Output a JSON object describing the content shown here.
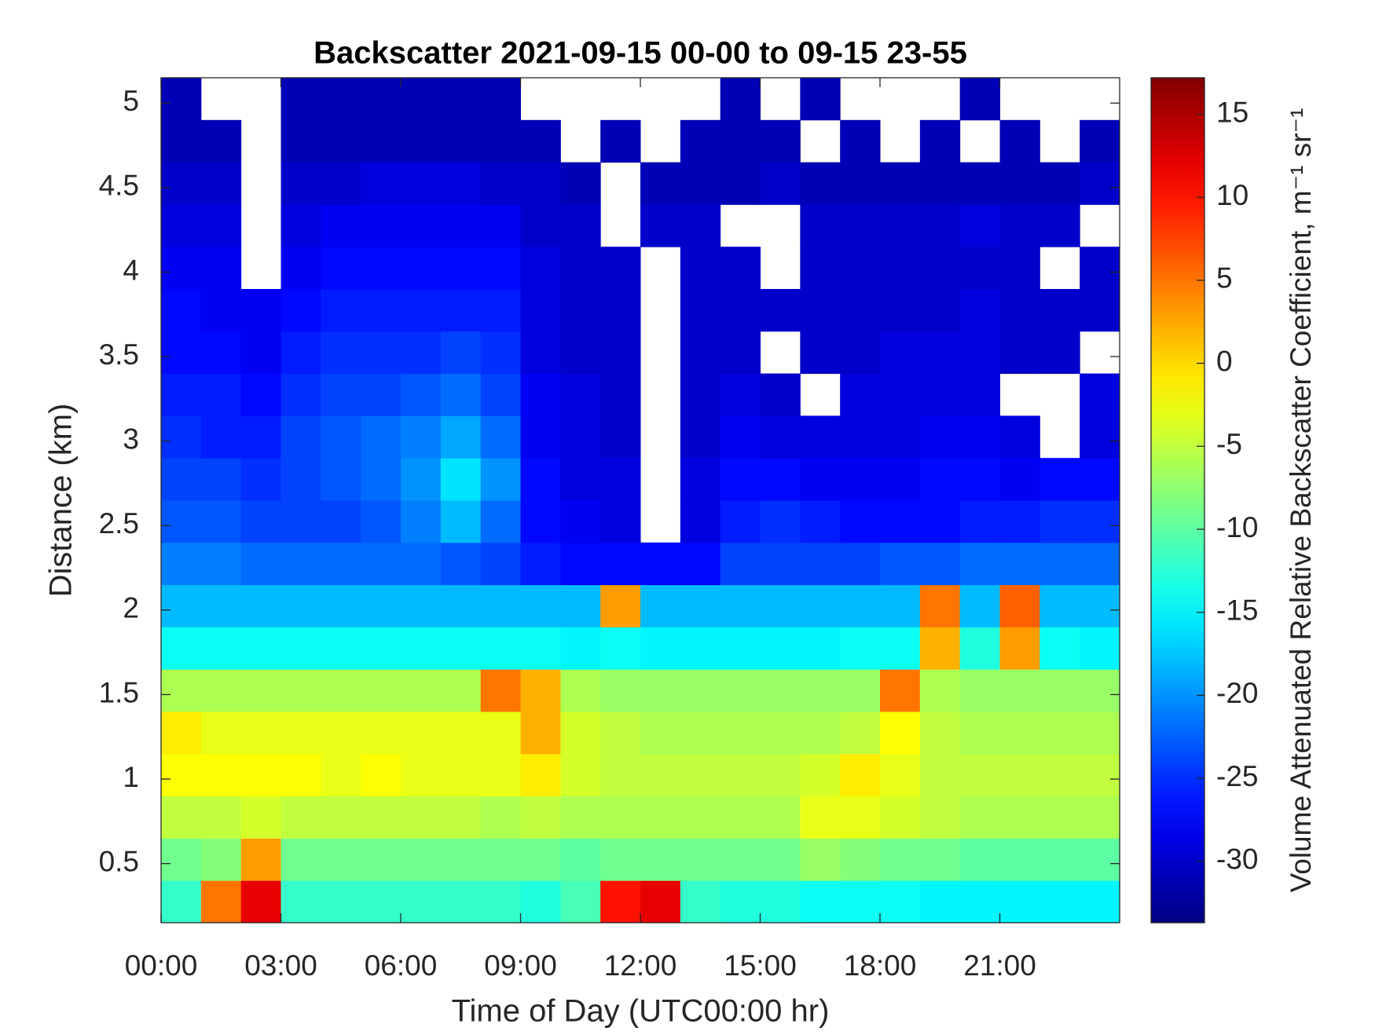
{
  "chart_data": {
    "type": "heatmap",
    "title": "Backscatter 2021-09-15 00-00 to 09-15 23-55",
    "x_label": "Time of Day (UTC00:00 hr)",
    "y_label": "Distance (km)",
    "colorbar_label": "Volume Attenuated Relative Backscatter Coefficient, m⁻¹ sr⁻¹",
    "colormap": "jet",
    "x": [
      0,
      1,
      2,
      3,
      4,
      5,
      6,
      7,
      8,
      9,
      10,
      11,
      12,
      13,
      14,
      15,
      16,
      17,
      18,
      19,
      20,
      21,
      22,
      23,
      24
    ],
    "y": [
      0.15,
      0.4,
      0.65,
      0.9,
      1.15,
      1.4,
      1.65,
      1.9,
      2.15,
      2.4,
      2.65,
      2.9,
      3.15,
      3.4,
      3.65,
      3.9,
      4.15,
      4.4,
      4.65,
      4.9,
      5.15
    ],
    "z": [
      [
        -12,
        5,
        12,
        -12,
        -12,
        -12,
        -12,
        -12,
        -12,
        -13,
        -11,
        10,
        12,
        -12,
        -13,
        -13,
        -14,
        -14,
        -14,
        -15,
        -15,
        -15,
        -15,
        -15
      ],
      [
        -9,
        -8,
        3,
        -9,
        -9,
        -9,
        -9,
        -9,
        -9,
        -9,
        -10,
        -9,
        -9,
        -9,
        -9,
        -9,
        -7,
        -8,
        -9,
        -9,
        -10,
        -10,
        -10,
        -10
      ],
      [
        -5,
        -5,
        -4,
        -5,
        -5,
        -5,
        -5,
        -5,
        -6,
        -5,
        -6,
        -6,
        -6,
        -6,
        -6,
        -6,
        -3,
        -3,
        -4,
        -5,
        -6,
        -6,
        -6,
        -6
      ],
      [
        -2,
        -2,
        -2,
        -2,
        -3,
        -2,
        -3,
        -3,
        -3,
        -1,
        -4,
        -5,
        -5,
        -5,
        -5,
        -5,
        -4,
        -1,
        -3,
        -5,
        -5,
        -5,
        -5,
        -5
      ],
      [
        -1,
        -3,
        -3,
        -3,
        -3,
        -3,
        -3,
        -3,
        -3,
        2,
        -4,
        -5,
        -6,
        -6,
        -6,
        -6,
        -6,
        -5,
        -2,
        -5,
        -6,
        -6,
        -6,
        -6
      ],
      [
        -6,
        -6,
        -6,
        -6,
        -6,
        -6,
        -6,
        -6,
        5,
        2,
        -6,
        -7,
        -7,
        -7,
        -7,
        -7,
        -7,
        -7,
        5,
        -6,
        -7,
        -7,
        -7,
        -7
      ],
      [
        -14,
        -14,
        -14,
        -14,
        -14,
        -14,
        -14,
        -14,
        -14,
        -14,
        -15,
        -14,
        -15,
        -15,
        -15,
        -15,
        -15,
        -14,
        -14,
        2,
        -13,
        3,
        -14,
        -15
      ],
      [
        -18,
        -18,
        -18,
        -18,
        -18,
        -18,
        -18,
        -18,
        -18,
        -18,
        -18,
        3,
        -18,
        -18,
        -18,
        -18,
        -18,
        -18,
        -18,
        5,
        -18,
        6,
        -18,
        -18
      ],
      [
        -21,
        -21,
        -22,
        -22,
        -22,
        -22,
        -22,
        -23,
        -24,
        -26,
        -27,
        -27,
        -27,
        -27,
        -24,
        -24,
        -24,
        -24,
        -23,
        -23,
        -22,
        -22,
        -22,
        -22
      ],
      [
        -23,
        -23,
        -24,
        -24,
        -24,
        -23,
        -21,
        -18,
        -22,
        -27,
        -28,
        -29,
        null,
        -29,
        -26,
        -25,
        -26,
        -27,
        -27,
        -27,
        -26,
        -26,
        -25,
        -25
      ],
      [
        -24,
        -24,
        -25,
        -24,
        -23,
        -22,
        -20,
        -16,
        -20,
        -27,
        -29,
        -29,
        null,
        -29,
        -27,
        -27,
        -28,
        -28,
        -28,
        -27,
        -27,
        -28,
        -27,
        -27
      ],
      [
        -25,
        -26,
        -26,
        -24,
        -23,
        -22,
        -21,
        -19,
        -22,
        -28,
        -29,
        -30,
        null,
        -30,
        -28,
        -29,
        -29,
        -29,
        -29,
        -28,
        -28,
        -29,
        null,
        -29
      ],
      [
        -26,
        -26,
        -27,
        -25,
        -24,
        -24,
        -23,
        -22,
        -24,
        -28,
        -29,
        -30,
        null,
        -30,
        -29,
        -30,
        null,
        -29,
        -29,
        -29,
        -29,
        null,
        null,
        -29
      ],
      [
        -27,
        -27,
        -28,
        -26,
        -25,
        -25,
        -25,
        -24,
        -25,
        -29,
        -30,
        -30,
        null,
        -30,
        -30,
        null,
        -30,
        -30,
        -29,
        -29,
        -29,
        -30,
        -30,
        null
      ],
      [
        -27,
        -28,
        -28,
        -27,
        -26,
        -26,
        -26,
        -26,
        -26,
        -29,
        -30,
        -30,
        null,
        -30,
        -30,
        -30,
        -30,
        -30,
        -30,
        -30,
        -29,
        -30,
        -30,
        -30
      ],
      [
        -28,
        -28,
        null,
        -28,
        -27,
        -27,
        -27,
        -27,
        -27,
        -29,
        -30,
        -30,
        null,
        -30,
        -30,
        null,
        -30,
        -30,
        -30,
        -30,
        -30,
        -30,
        null,
        -30
      ],
      [
        -29,
        -29,
        null,
        -29,
        -28,
        -28,
        -28,
        -28,
        -28,
        -30,
        -30,
        null,
        -30,
        -30,
        null,
        null,
        -30,
        -30,
        -30,
        -30,
        -29,
        -30,
        -30,
        null
      ],
      [
        -30,
        -30,
        null,
        -30,
        -30,
        -29,
        -29,
        -29,
        -30,
        -30,
        -31,
        null,
        -31,
        -31,
        -31,
        -30,
        -31,
        -31,
        -31,
        -31,
        -31,
        -31,
        -31,
        -30
      ],
      [
        -31,
        -31,
        null,
        -31,
        -31,
        -31,
        -31,
        -31,
        -31,
        -31,
        null,
        -31,
        null,
        -31,
        -31,
        -31,
        null,
        -31,
        null,
        -31,
        null,
        -31,
        null,
        -31
      ],
      [
        -31,
        null,
        null,
        -31,
        -31,
        -31,
        -31,
        -31,
        -31,
        null,
        null,
        null,
        null,
        null,
        -31,
        null,
        -31,
        null,
        null,
        null,
        -31,
        null,
        null,
        null
      ]
    ],
    "xlim": [
      0,
      24
    ],
    "xticks": [
      {
        "value": 0,
        "label": "00:00"
      },
      {
        "value": 3,
        "label": "03:00"
      },
      {
        "value": 6,
        "label": "06:00"
      },
      {
        "value": 9,
        "label": "09:00"
      },
      {
        "value": 12,
        "label": "12:00"
      },
      {
        "value": 15,
        "label": "15:00"
      },
      {
        "value": 18,
        "label": "18:00"
      },
      {
        "value": 21,
        "label": "21:00"
      }
    ],
    "ylim": [
      0.15,
      5.15
    ],
    "yticks": [
      0.5,
      1,
      1.5,
      2,
      2.5,
      3,
      3.5,
      4,
      4.5,
      5
    ],
    "clim": [
      -33.7,
      17.2
    ],
    "cticks": [
      -30,
      -25,
      -20,
      -15,
      -10,
      -5,
      0,
      5,
      10,
      15
    ]
  }
}
